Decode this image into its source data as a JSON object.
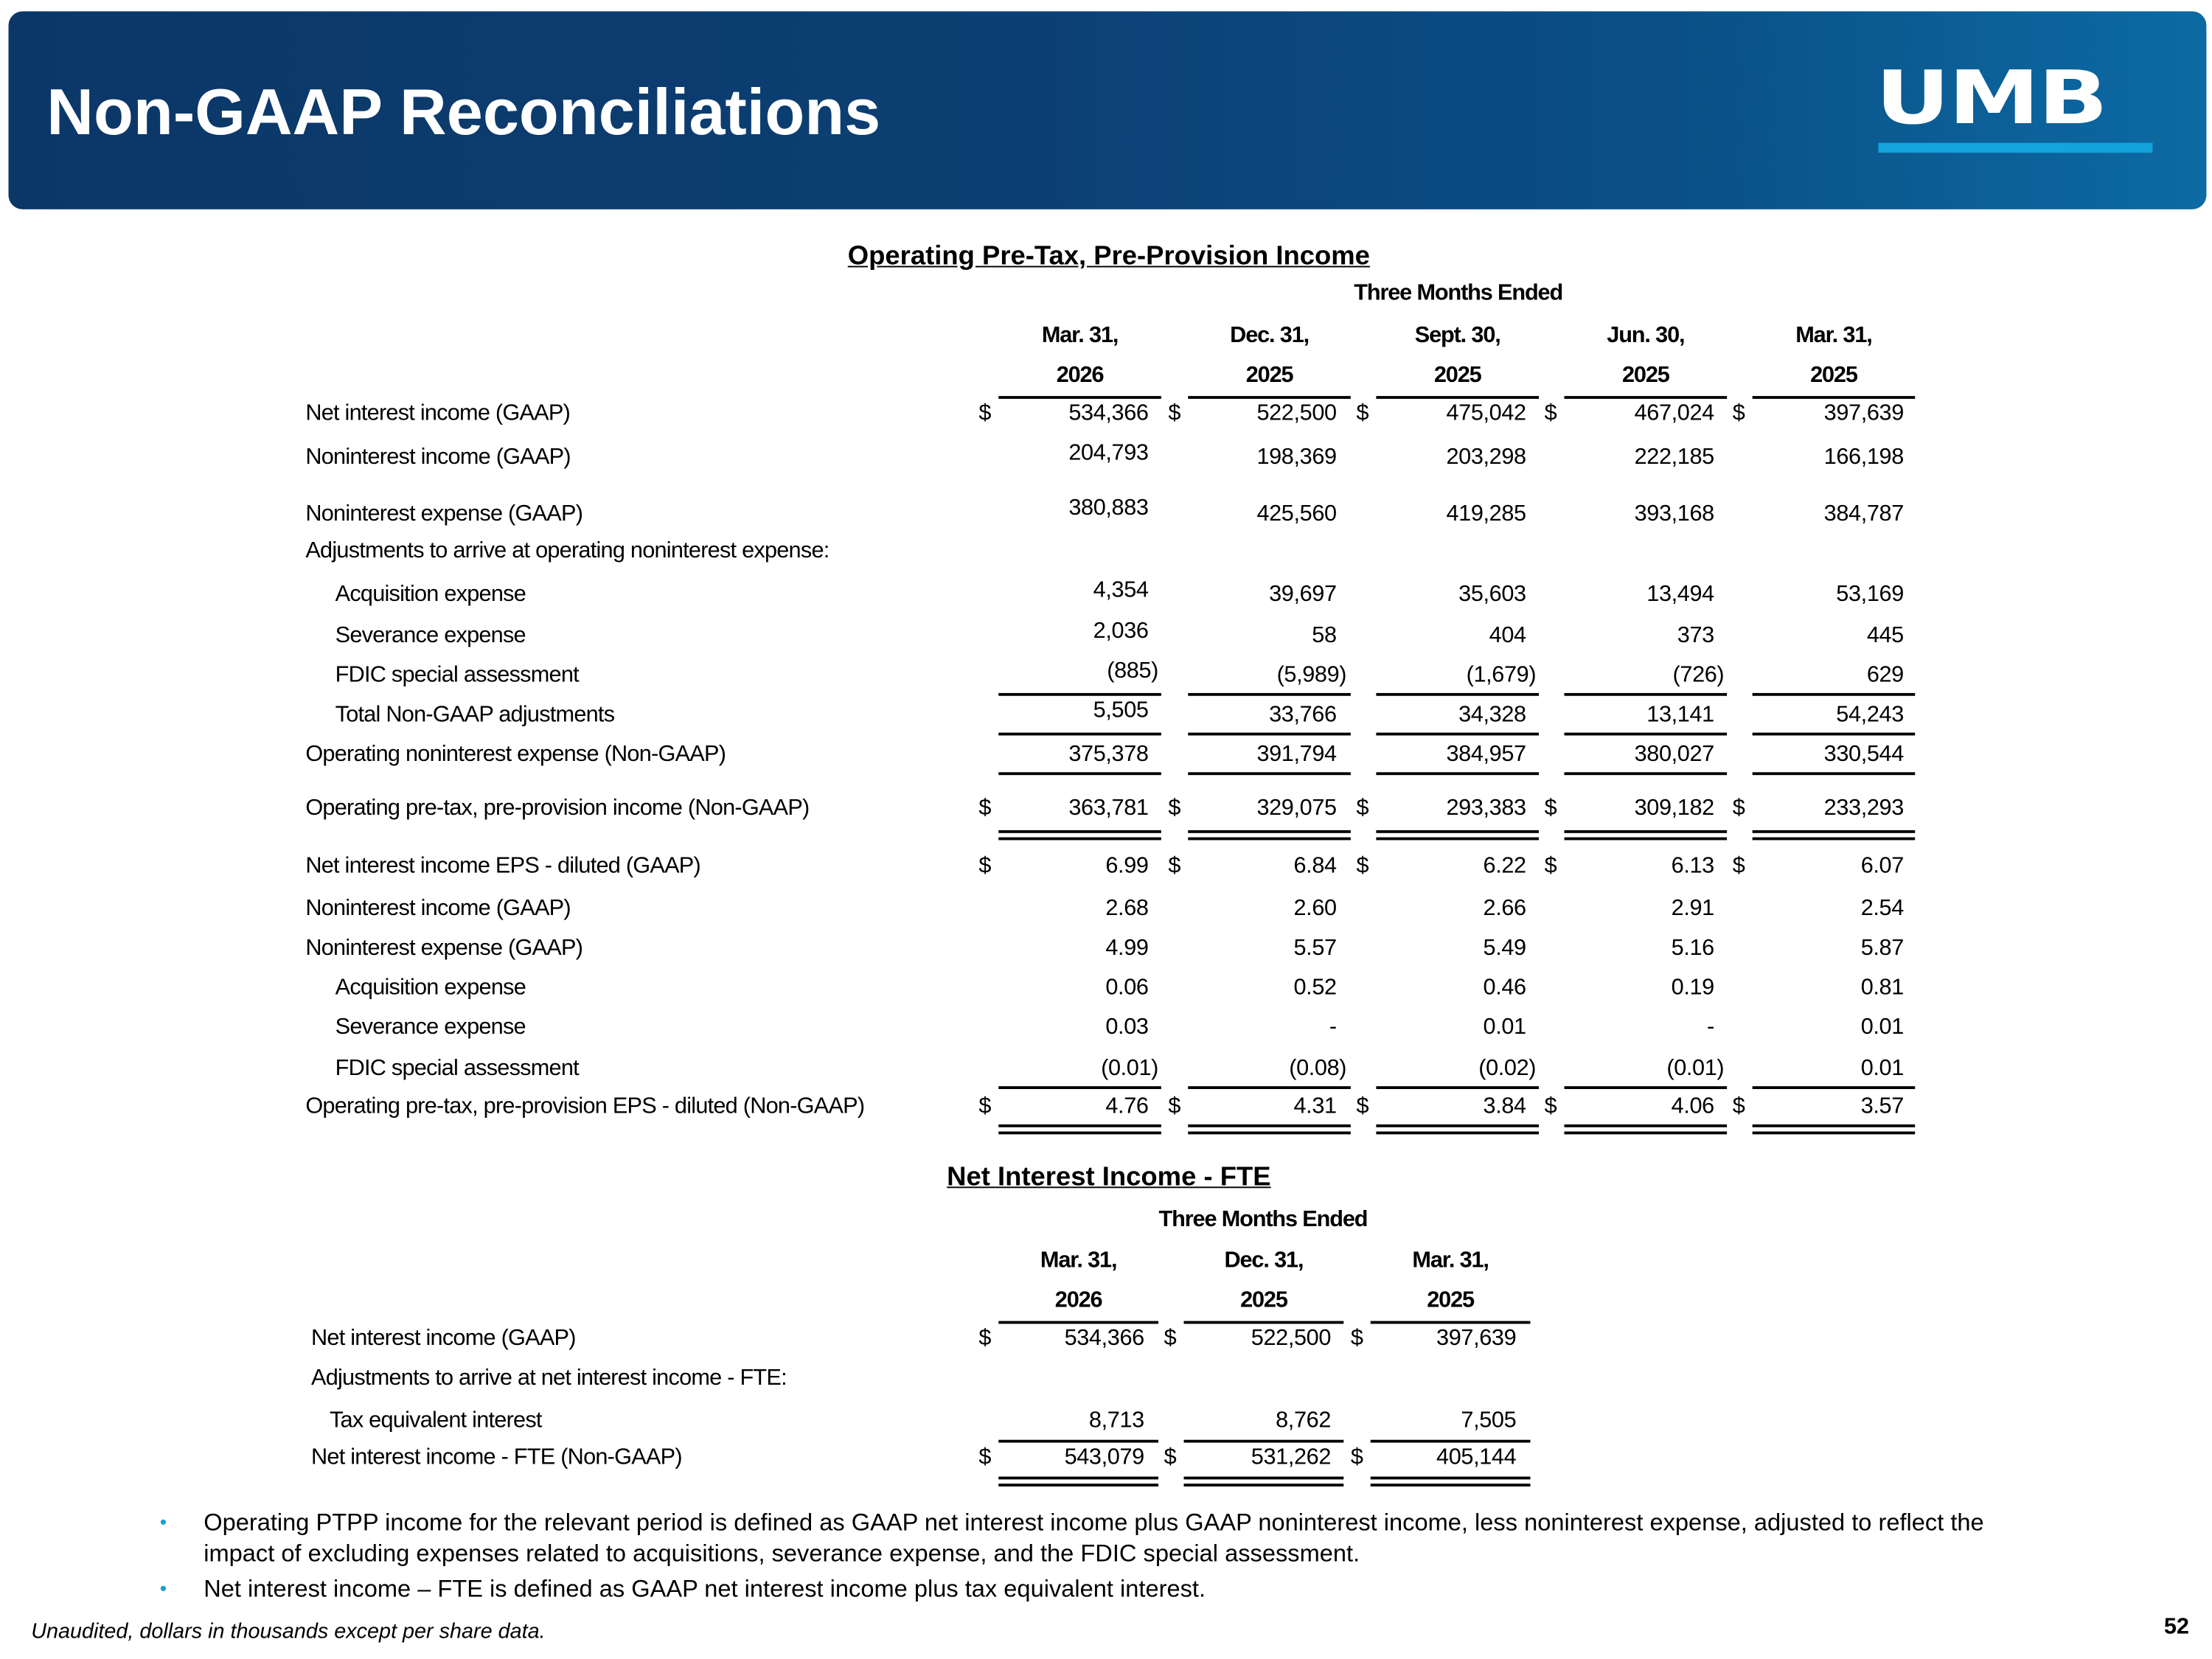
{
  "header": {
    "title": "Non-GAAP Reconciliations",
    "logo_text": "UMB"
  },
  "table1": {
    "title": "Operating Pre-Tax, Pre-Provision Income",
    "period_header": "Three Months Ended",
    "columns": [
      {
        "line1": "Mar. 31,",
        "line2": "2026"
      },
      {
        "line1": "Dec. 31,",
        "line2": "2025"
      },
      {
        "line1": "Sept. 30,",
        "line2": "2025"
      },
      {
        "line1": "Jun. 30,",
        "line2": "2025"
      },
      {
        "line1": "Mar. 31,",
        "line2": "2025"
      }
    ],
    "rows": [
      {
        "label": "Net interest income (GAAP)",
        "dollar": true,
        "values": [
          "534,366",
          "522,500",
          "475,042",
          "467,024",
          "397,639"
        ]
      },
      {
        "label": "Noninterest income (GAAP)",
        "values": [
          "204,793",
          "198,369",
          "203,298",
          "222,185",
          "166,198"
        ]
      },
      {
        "label": "Noninterest expense (GAAP)",
        "values": [
          "380,883",
          "425,560",
          "419,285",
          "393,168",
          "384,787"
        ]
      },
      {
        "label": "Adjustments to arrive at operating noninterest expense:",
        "values": []
      },
      {
        "label": "Acquisition expense",
        "indent": true,
        "values": [
          "4,354",
          "39,697",
          "35,603",
          "13,494",
          "53,169"
        ]
      },
      {
        "label": "Severance expense",
        "indent": true,
        "values": [
          "2,036",
          "58",
          "404",
          "373",
          "445"
        ]
      },
      {
        "label": "FDIC special assessment",
        "indent": true,
        "values": [
          "(885)",
          "(5,989)",
          "(1,679)",
          "(726)",
          "629"
        ]
      },
      {
        "label": "Total Non-GAAP adjustments",
        "indent": true,
        "values": [
          "5,505",
          "33,766",
          "34,328",
          "13,141",
          "54,243"
        ]
      },
      {
        "label": "Operating noninterest expense (Non-GAAP)",
        "values": [
          "375,378",
          "391,794",
          "384,957",
          "380,027",
          "330,544"
        ]
      },
      {
        "label": "Operating pre-tax, pre-provision income (Non-GAAP)",
        "dollar": true,
        "values": [
          "363,781",
          "329,075",
          "293,383",
          "309,182",
          "233,293"
        ]
      },
      {
        "label": "Net interest income EPS - diluted (GAAP)",
        "dollar": true,
        "values": [
          "6.99",
          "6.84",
          "6.22",
          "6.13",
          "6.07"
        ]
      },
      {
        "label": "Noninterest income (GAAP)",
        "values": [
          "2.68",
          "2.60",
          "2.66",
          "2.91",
          "2.54"
        ]
      },
      {
        "label": "Noninterest expense (GAAP)",
        "values": [
          "4.99",
          "5.57",
          "5.49",
          "5.16",
          "5.87"
        ]
      },
      {
        "label": "Acquisition expense",
        "indent": true,
        "values": [
          "0.06",
          "0.52",
          "0.46",
          "0.19",
          "0.81"
        ]
      },
      {
        "label": "Severance expense",
        "indent": true,
        "values": [
          "0.03",
          "-",
          "0.01",
          "-",
          "0.01"
        ]
      },
      {
        "label": "FDIC special assessment",
        "indent": true,
        "values": [
          "(0.01)",
          "(0.08)",
          "(0.02)",
          "(0.01)",
          "0.01"
        ]
      },
      {
        "label": "Operating pre-tax, pre-provision EPS - diluted (Non-GAAP)",
        "dollar": true,
        "values": [
          "4.76",
          "4.31",
          "3.84",
          "4.06",
          "3.57"
        ]
      }
    ]
  },
  "table2": {
    "title": "Net Interest Income - FTE",
    "period_header": "Three Months Ended",
    "columns": [
      {
        "line1": "Mar. 31,",
        "line2": "2026"
      },
      {
        "line1": "Dec. 31,",
        "line2": "2025"
      },
      {
        "line1": "Mar. 31,",
        "line2": "2025"
      }
    ],
    "rows": [
      {
        "label": "Net interest income (GAAP)",
        "dollar": true,
        "values": [
          "534,366",
          "522,500",
          "397,639"
        ]
      },
      {
        "label": "Adjustments to arrive at net interest income - FTE:",
        "values": []
      },
      {
        "label": "Tax equivalent interest",
        "indent": true,
        "values": [
          "8,713",
          "8,762",
          "7,505"
        ]
      },
      {
        "label": "Net interest income - FTE (Non-GAAP)",
        "dollar": true,
        "values": [
          "543,079",
          "531,262",
          "405,144"
        ]
      }
    ]
  },
  "bullets": [
    "Operating PTPP income for the relevant period is defined as GAAP net interest income plus GAAP noninterest income, less noninterest expense, adjusted to reflect the impact of excluding expenses related to acquisitions, severance expense, and the FDIC special assessment.",
    "Net interest income – FTE is defined as GAAP net interest income plus tax equivalent interest."
  ],
  "bullet_char": "•",
  "dollar_sign": "$",
  "footer": {
    "note": "Unaudited, dollars in thousands except per share data.",
    "page_number": "52"
  },
  "colors": {
    "banner": "#0b3767",
    "accent": "#14a3dc"
  }
}
